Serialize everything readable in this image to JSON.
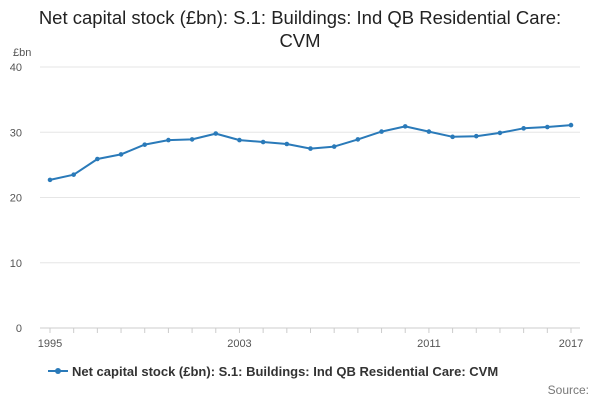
{
  "chart_data": {
    "type": "line",
    "title": "Net capital stock (£bn): S.1: Buildings: Ind QB Residential Care: CVM",
    "xlabel": "",
    "ylabel": "£bn",
    "ylim": [
      0,
      40
    ],
    "yticks": [
      0,
      10,
      20,
      30,
      40
    ],
    "xlim": [
      1995,
      2017
    ],
    "xtick_labels": [
      "1995",
      "2003",
      "2011",
      "2017"
    ],
    "x": [
      1995,
      1996,
      1997,
      1998,
      1999,
      2000,
      2001,
      2002,
      2003,
      2004,
      2005,
      2006,
      2007,
      2008,
      2009,
      2010,
      2011,
      2012,
      2013,
      2014,
      2015,
      2016,
      2017
    ],
    "series": [
      {
        "name": "Net capital stock (£bn): S.1: Buildings: Ind QB Residential Care: CVM",
        "color": "#2a7ab9",
        "values": [
          22.7,
          23.5,
          25.9,
          26.6,
          28.1,
          28.8,
          28.9,
          29.8,
          28.8,
          28.5,
          28.2,
          27.5,
          27.8,
          28.9,
          30.1,
          30.9,
          30.1,
          29.3,
          29.4,
          29.9,
          30.6,
          30.8,
          31.1
        ]
      }
    ],
    "grid": true,
    "legend_position": "bottom-left"
  },
  "legend_label": "Net capital stock (£bn): S.1: Buildings: Ind QB Residential Care: CVM",
  "source_label": "Source:"
}
